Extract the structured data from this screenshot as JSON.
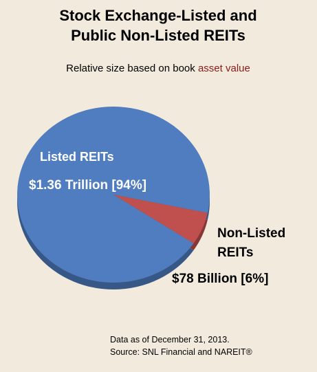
{
  "chart_data": {
    "type": "pie",
    "title": [
      "Stock Exchange-Listed and",
      "Public Non-Listed REITs"
    ],
    "subtitle": "Relative size based on book",
    "subtitle_highlight": "asset value",
    "categories": [
      "Listed REITs",
      "Non-Listed REITs"
    ],
    "values": [
      94,
      6
    ],
    "value_labels": [
      "$1.36 Trillion [94%]",
      "$78 Billion [6%]"
    ],
    "colors": [
      "#4f7dbf",
      "#c0504d"
    ],
    "notes": [
      "Data as of December 31, 2013.",
      "Source: SNL Financial and NAREIT®"
    ]
  }
}
